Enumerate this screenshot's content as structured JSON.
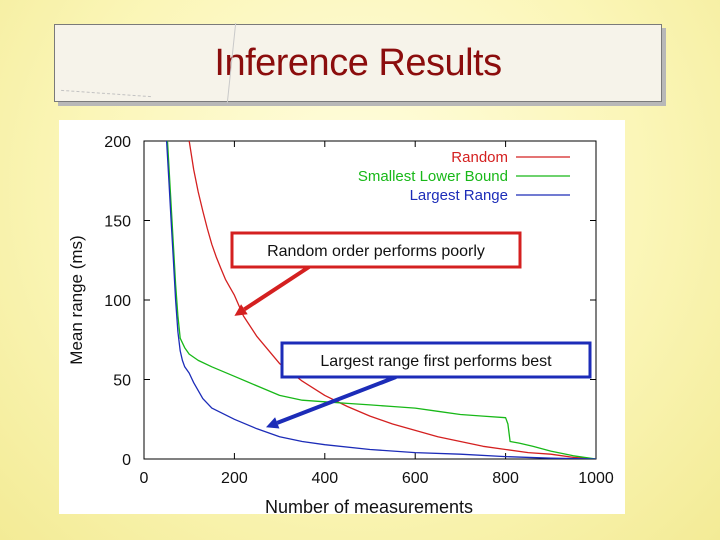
{
  "slide": {
    "title": "Inference Results"
  },
  "chart_data": {
    "type": "line",
    "title": "",
    "xlabel": "Number of measurements",
    "ylabel": "Mean range (ms)",
    "xlim": [
      0,
      1000
    ],
    "ylim": [
      0,
      200
    ],
    "xticks": [
      0,
      200,
      400,
      600,
      800,
      1000
    ],
    "yticks": [
      0,
      50,
      100,
      150,
      200
    ],
    "legend_position": "top-right",
    "series": [
      {
        "name": "Random",
        "color": "#d42020",
        "x": [
          100,
          110,
          120,
          130,
          140,
          150,
          160,
          170,
          180,
          190,
          200,
          220,
          250,
          300,
          350,
          400,
          450,
          500,
          550,
          600,
          650,
          700,
          750,
          800,
          850,
          900,
          950,
          1000
        ],
        "y": [
          200,
          182,
          168,
          156,
          145,
          135,
          127,
          120,
          113,
          108,
          103,
          90,
          77,
          60,
          49,
          40,
          33,
          27,
          22,
          18,
          14,
          11,
          8,
          6,
          4,
          3,
          1,
          0
        ]
      },
      {
        "name": "Smallest Lower Bound",
        "color": "#18b818",
        "x": [
          52,
          58,
          64,
          70,
          75,
          80,
          90,
          100,
          120,
          150,
          200,
          250,
          300,
          350,
          400,
          450,
          500,
          550,
          600,
          650,
          700,
          750,
          800,
          805,
          810,
          830,
          860,
          900,
          950,
          1000
        ],
        "y": [
          200,
          170,
          140,
          110,
          90,
          76,
          70,
          66,
          62,
          58,
          52,
          46,
          40,
          37,
          36,
          35,
          34,
          33,
          32,
          30,
          28,
          27,
          26,
          22,
          11,
          10,
          8,
          5,
          2,
          0
        ]
      },
      {
        "name": "Largest Range",
        "color": "#1c2cb8",
        "x": [
          50,
          55,
          60,
          65,
          70,
          75,
          80,
          85,
          90,
          100,
          110,
          130,
          150,
          200,
          250,
          300,
          350,
          400,
          500,
          600,
          700,
          800,
          900,
          1000
        ],
        "y": [
          200,
          175,
          150,
          125,
          100,
          80,
          68,
          62,
          58,
          54,
          48,
          38,
          32,
          25,
          19,
          14,
          11,
          9,
          6,
          4,
          3,
          1.5,
          0.5,
          0
        ]
      }
    ],
    "annotations": [
      {
        "text": "Random order performs poorly",
        "color": "#d42020",
        "arrow_to": [
          200,
          90
        ]
      },
      {
        "text": "Largest range first performs best",
        "color": "#1c2cb8",
        "arrow_to": [
          270,
          20
        ]
      }
    ]
  }
}
